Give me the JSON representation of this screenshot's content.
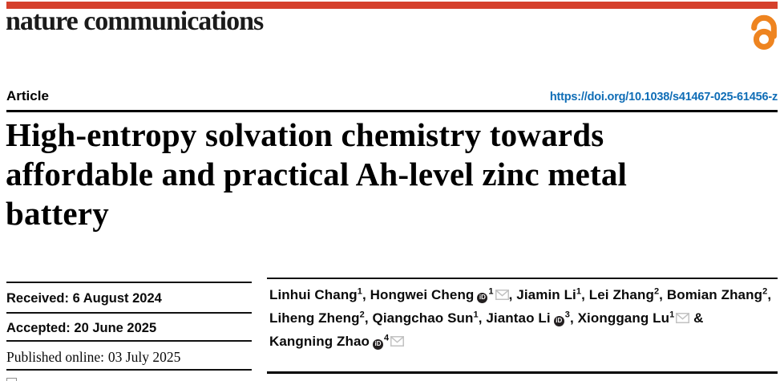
{
  "journal": {
    "name": "nature communications"
  },
  "header": {
    "article_label": "Article",
    "doi": "https://doi.org/10.1038/s41467-025-61456-z"
  },
  "article": {
    "title_lines": [
      "High-entropy solvation chemistry towards",
      "affordable and practical Ah-level zinc metal",
      "battery"
    ]
  },
  "dates": [
    {
      "label": "Received:",
      "value": "6 August 2024"
    },
    {
      "label": "Accepted:",
      "value": "20 June 2025"
    },
    {
      "label": "Published online:",
      "value": "03 July 2025"
    }
  ],
  "authors": {
    "lines": [
      [
        {
          "name": "Linhui Chang",
          "sup": "1",
          "tail": ", "
        },
        {
          "name": "Hongwei Cheng",
          "orcid": true,
          "sup": "1",
          "mail": true,
          "tail": ", "
        },
        {
          "name": "Jiamin Li",
          "sup": "1",
          "tail": ", "
        },
        {
          "name": "Lei Zhang",
          "sup": "2",
          "tail": ", "
        },
        {
          "name": "Bomian Zhang",
          "sup": "2",
          "tail": ","
        }
      ],
      [
        {
          "name": "Liheng Zheng",
          "sup": "2",
          "tail": ", "
        },
        {
          "name": "Qiangchao Sun",
          "sup": "1",
          "tail": ", "
        },
        {
          "name": "Jiantao Li",
          "orcid": true,
          "sup": "3",
          "tail": ", "
        },
        {
          "name": "Xionggang Lu",
          "sup": "1",
          "mail": true,
          "tail": " &"
        }
      ],
      [
        {
          "name": "Kangning Zhao",
          "orcid": true,
          "sup": "4",
          "mail": true,
          "tail": ""
        }
      ]
    ]
  },
  "icons": {
    "open_access": "open-padlock",
    "orcid_glyph": "iD",
    "envelope": "email-envelope",
    "check_updates": "check-for-updates-square"
  },
  "colors": {
    "brand-red": "#d5402c",
    "link-blue": "#0f6db6",
    "oa-orange": "#ee8420",
    "orcid-bg": "#231f20",
    "envelope-gray": "#c2c2c2",
    "rule-dark": "#111111"
  }
}
